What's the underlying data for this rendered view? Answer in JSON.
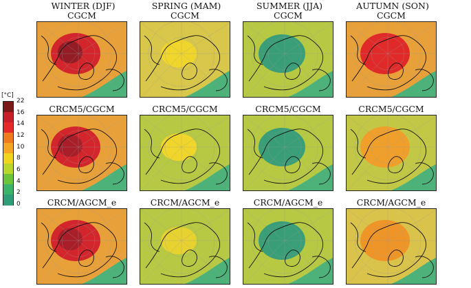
{
  "colorbar": {
    "unit": "[°C]",
    "ticks": [
      "22",
      "16",
      "14",
      "12",
      "10",
      "8",
      "6",
      "4",
      "2",
      "0"
    ],
    "colors": [
      "#7a1a1a",
      "#c8202b",
      "#e62a2a",
      "#f07a1e",
      "#f5a623",
      "#f1d51c",
      "#b9d62a",
      "#6cc43a",
      "#3bb36a",
      "#2f9e78"
    ]
  },
  "seasons": [
    "WINTER (DJF)",
    "SPRING (MAM)",
    "SUMMER (JJA)",
    "AUTUMN (SON)"
  ],
  "row_labels": [
    "CGCM",
    "CRCM5/CGCM",
    "CRCM/AGCM_e"
  ],
  "panels": [
    [
      {
        "c": "#e8a13a",
        "blob": "#d2262c",
        "core": "#8a1c24"
      },
      {
        "c": "#d8c74a",
        "blob": "#f0d52a",
        "core": "#f0d52a"
      },
      {
        "c": "#b7c944",
        "blob": "#3a9e78",
        "core": "#3a9e78"
      },
      {
        "c": "#e8a13a",
        "blob": "#e02a2a",
        "core": "#e02a2a"
      }
    ],
    [
      {
        "c": "#e8a13a",
        "blob": "#d2262c",
        "core": "#a11f2a"
      },
      {
        "c": "#b7c944",
        "blob": "#f0d52a",
        "core": "#f0d52a"
      },
      {
        "c": "#b7c944",
        "blob": "#3a9e78",
        "core": "#3a9e78"
      },
      {
        "c": "#c2c845",
        "blob": "#f0a02a",
        "core": "#f0a02a"
      }
    ],
    [
      {
        "c": "#e8a13a",
        "blob": "#d2262c",
        "core": "#a11f2a"
      },
      {
        "c": "#b7c944",
        "blob": "#e7d22f",
        "core": "#e7d22f"
      },
      {
        "c": "#b7c944",
        "blob": "#3a9e78",
        "core": "#3a9e78"
      },
      {
        "c": "#d9c34a",
        "blob": "#ef9427",
        "core": "#ef9427"
      }
    ]
  ]
}
